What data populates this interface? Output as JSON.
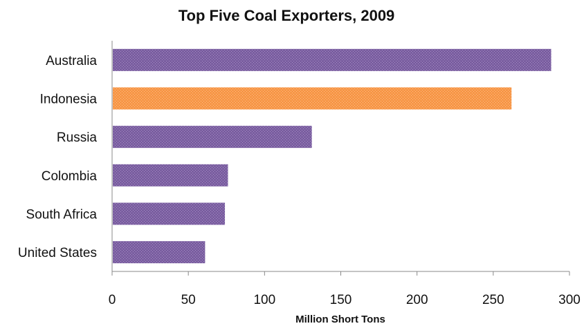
{
  "chart_data": {
    "type": "bar",
    "orientation": "horizontal",
    "title": "Top Five Coal Exporters, 2009",
    "xlabel": "Million Short Tons",
    "ylabel": "",
    "categories": [
      "Australia",
      "Indonesia",
      "Russia",
      "Colombia",
      "South Africa",
      "United States"
    ],
    "values": [
      288,
      262,
      131,
      76,
      74,
      61
    ],
    "xlim": [
      0,
      300
    ],
    "xticks": [
      "0",
      "50",
      "100",
      "150",
      "200",
      "250",
      "300"
    ],
    "grid": false,
    "legend": "none",
    "colors": {
      "default": "#8064a2",
      "highlight": "#f79646",
      "highlight_category": "Indonesia"
    }
  }
}
